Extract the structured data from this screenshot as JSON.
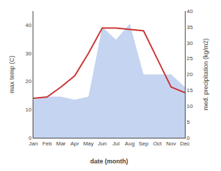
{
  "chart_data": {
    "type": "line",
    "xlabel": "date (month)",
    "ylabel": "max temp (C)",
    "y2label": "med. precipitation (kg/m2)",
    "categories": [
      "Jan",
      "Feb",
      "Mar",
      "Apr",
      "May",
      "Jun",
      "Jul",
      "Aug",
      "Sep",
      "Oct",
      "Nov",
      "Dec"
    ],
    "series": [
      {
        "type": "line",
        "color": "#cc3333",
        "values": [
          14,
          14.5,
          18,
          22,
          30,
          39,
          39,
          38.5,
          38,
          28,
          18,
          16
        ]
      },
      {
        "type": "area",
        "color": "#c5d4f0",
        "axis": "y2",
        "values": [
          12,
          13,
          13,
          12,
          13,
          35,
          31,
          36,
          20,
          20,
          20,
          16
        ]
      }
    ],
    "ylim": [
      0,
      45
    ],
    "yticks": [
      0,
      10,
      20,
      30,
      40
    ],
    "y2lim": [
      0,
      40
    ],
    "y2ticks": [
      0,
      5,
      10,
      15,
      20,
      25,
      30,
      35,
      40
    ],
    "grid": false
  }
}
